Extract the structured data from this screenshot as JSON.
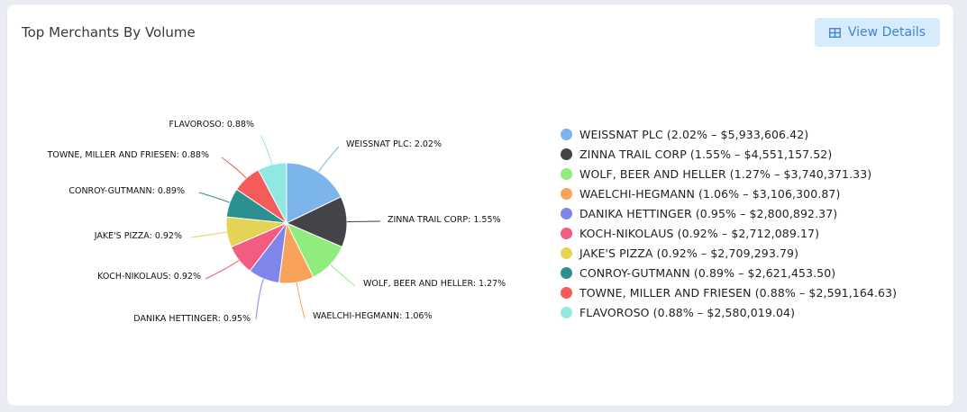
{
  "card": {
    "title": "Top Merchants By Volume",
    "button_label": "View Details",
    "button_icon": "table-icon"
  },
  "chart_data": {
    "type": "pie",
    "title": "Top Merchants By Volume",
    "label_position": "outside-with-leader-lines",
    "legend_position": "right",
    "slices": [
      {
        "name": "WEISSNAT PLC",
        "percent": 2.02,
        "amount": "$5,933,606.42",
        "color": "#7cb5ec",
        "label": "WEISSNAT PLC: 2.02%",
        "legend": "WEISSNAT PLC (2.02% – $5,933,606.42)"
      },
      {
        "name": "ZINNA TRAIL CORP",
        "percent": 1.55,
        "amount": "$4,551,157.52",
        "color": "#434348",
        "label": "ZINNA TRAIL CORP: 1.55%",
        "legend": "ZINNA TRAIL CORP (1.55% – $4,551,157.52)"
      },
      {
        "name": "WOLF, BEER AND HELLER",
        "percent": 1.27,
        "amount": "$3,740,371.33",
        "color": "#90ed7d",
        "label": "WOLF, BEER AND HELLER: 1.27%",
        "legend": "WOLF, BEER AND HELLER (1.27% – $3,740,371.33)"
      },
      {
        "name": "WAELCHI-HEGMANN",
        "percent": 1.06,
        "amount": "$3,106,300.87",
        "color": "#f7a35c",
        "label": "WAELCHI-HEGMANN: 1.06%",
        "legend": "WAELCHI-HEGMANN (1.06% – $3,106,300.87)"
      },
      {
        "name": "DANIKA HETTINGER",
        "percent": 0.95,
        "amount": "$2,800,892.37",
        "color": "#8085e9",
        "label": "DANIKA HETTINGER: 0.95%",
        "legend": "DANIKA HETTINGER (0.95% – $2,800,892.37)"
      },
      {
        "name": "KOCH-NIKOLAUS",
        "percent": 0.92,
        "amount": "$2,712,089.17",
        "color": "#f15c80",
        "label": "KOCH-NIKOLAUS: 0.92%",
        "legend": "KOCH-NIKOLAUS (0.92% – $2,712,089.17)"
      },
      {
        "name": "JAKE'S PIZZA",
        "percent": 0.92,
        "amount": "$2,709,293.79",
        "color": "#e4d354",
        "label": "JAKE'S PIZZA: 0.92%",
        "legend": "JAKE'S PIZZA (0.92% – $2,709,293.79)"
      },
      {
        "name": "CONROY-GUTMANN",
        "percent": 0.89,
        "amount": "$2,621,453.50",
        "color": "#2b908f",
        "label": "CONROY-GUTMANN: 0.89%",
        "legend": "CONROY-GUTMANN (0.89% – $2,621,453.50)"
      },
      {
        "name": "TOWNE, MILLER AND FRIESEN",
        "percent": 0.88,
        "amount": "$2,591,164.63",
        "color": "#f45b5b",
        "label": "TOWNE, MILLER AND FRIESEN: 0.88%",
        "legend": "TOWNE, MILLER AND FRIESEN (0.88% – $2,591,164.63)"
      },
      {
        "name": "FLAVOROSO",
        "percent": 0.88,
        "amount": "$2,580,019.04",
        "color": "#91e8e1",
        "label": "FLAVOROSO: 0.88%",
        "legend": "FLAVOROSO (0.88% – $2,580,019.04)"
      }
    ]
  }
}
